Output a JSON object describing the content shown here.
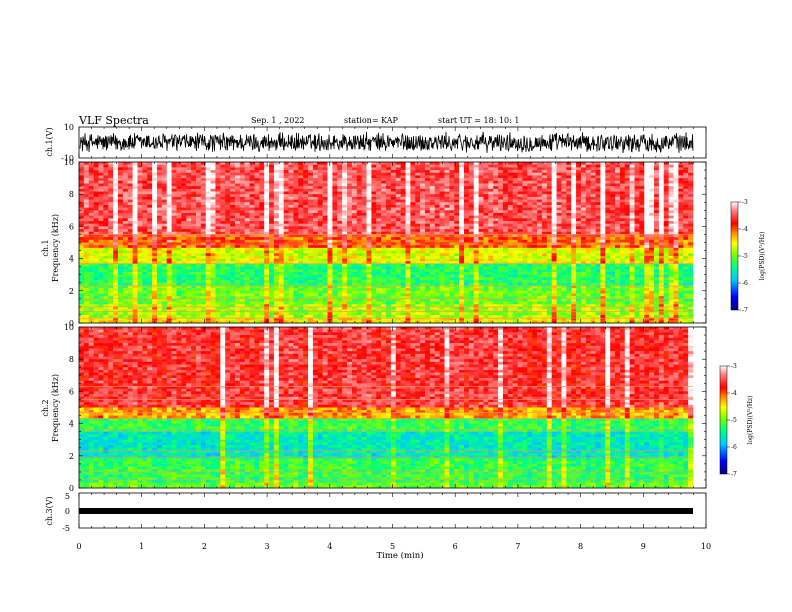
{
  "header": {
    "title": "VLF Spectra",
    "date": "Sep. 1 , 2022",
    "station": "station= KAP",
    "start_time": "start UT =  18: 10: 1"
  },
  "colors": {
    "colormap": [
      "#000080",
      "#0000ff",
      "#00c8ff",
      "#00ff80",
      "#80ff00",
      "#ffff00",
      "#ff8000",
      "#ff0000",
      "#ffffff"
    ],
    "trace": "#000000",
    "frame": "#000000"
  },
  "chart_data": [
    {
      "type": "line",
      "name": "ch1-waveform",
      "ylabel": "ch.1(V)",
      "ylim": [
        -10,
        10
      ],
      "yticks": [
        "10",
        "-10"
      ],
      "xlim": [
        0,
        10
      ],
      "note": "dense noisy waveform spanning roughly -7 to 7 V over 0 to 9.8 min"
    },
    {
      "type": "heatmap",
      "name": "ch1-spectrogram",
      "ylabel_top": "ch.1",
      "ylabel": "Frequency (kHz)",
      "ylim": [
        0,
        10
      ],
      "yticks": [
        "0",
        "2",
        "4",
        "6",
        "8",
        "10"
      ],
      "xlim": [
        0,
        9.8
      ],
      "colorbar": {
        "label": "log(PSD)(V²/Hz)",
        "range": [
          -7,
          -3
        ],
        "ticks": [
          "-3",
          "-4",
          "-5",
          "-6",
          "-7"
        ]
      },
      "bands": [
        {
          "f": [
            0,
            0.4
          ],
          "level": -4.5
        },
        {
          "f": [
            0.4,
            1.2
          ],
          "level": -4.8
        },
        {
          "f": [
            1.2,
            2.3
          ],
          "level": -5.0
        },
        {
          "f": [
            2.3,
            3.7
          ],
          "level": -5.3
        },
        {
          "f": [
            3.7,
            4.6
          ],
          "level": -4.6
        },
        {
          "f": [
            4.6,
            5.5
          ],
          "level": -4.0
        },
        {
          "f": [
            5.5,
            10
          ],
          "level": -3.5
        }
      ],
      "lines_khz": [
        0.3,
        0.7,
        1.0,
        1.5,
        2.3,
        3.7,
        4.9,
        5.4,
        5.5
      ]
    },
    {
      "type": "heatmap",
      "name": "ch2-spectrogram",
      "ylabel_top": "ch.2",
      "ylabel": "Frequency (kHz)",
      "ylim": [
        0,
        10
      ],
      "yticks": [
        "0",
        "2",
        "4",
        "6",
        "8",
        "10"
      ],
      "xlim": [
        0,
        9.8
      ],
      "colorbar": {
        "label": "log(PSD)(V²/Hz)",
        "range": [
          -7,
          -3
        ],
        "ticks": [
          "-3",
          "-4",
          "-5",
          "-6",
          "-7"
        ]
      },
      "bands": [
        {
          "f": [
            0,
            0.4
          ],
          "level": -5.0
        },
        {
          "f": [
            0.4,
            1.9
          ],
          "level": -5.2
        },
        {
          "f": [
            1.9,
            3.5
          ],
          "level": -5.6
        },
        {
          "f": [
            3.5,
            4.3
          ],
          "level": -5.2
        },
        {
          "f": [
            4.3,
            5.0
          ],
          "level": -4.2
        },
        {
          "f": [
            5.0,
            10
          ],
          "level": -3.6
        }
      ],
      "lines_khz": [
        0.5,
        1.0,
        1.9,
        2.3,
        3.6,
        4.3,
        4.7,
        5.5,
        6.3
      ]
    },
    {
      "type": "line",
      "name": "ch3-trace",
      "ylabel": "ch.3(V)",
      "ylim": [
        -5,
        5
      ],
      "yticks": [
        "5",
        "0",
        "-5"
      ],
      "xlim": [
        0,
        10
      ],
      "xlabel": "Time (min)",
      "xticks": [
        "0",
        "1",
        "2",
        "3",
        "4",
        "5",
        "6",
        "7",
        "8",
        "9",
        "10"
      ],
      "note": "near-constant thick band at about 0 V"
    }
  ]
}
